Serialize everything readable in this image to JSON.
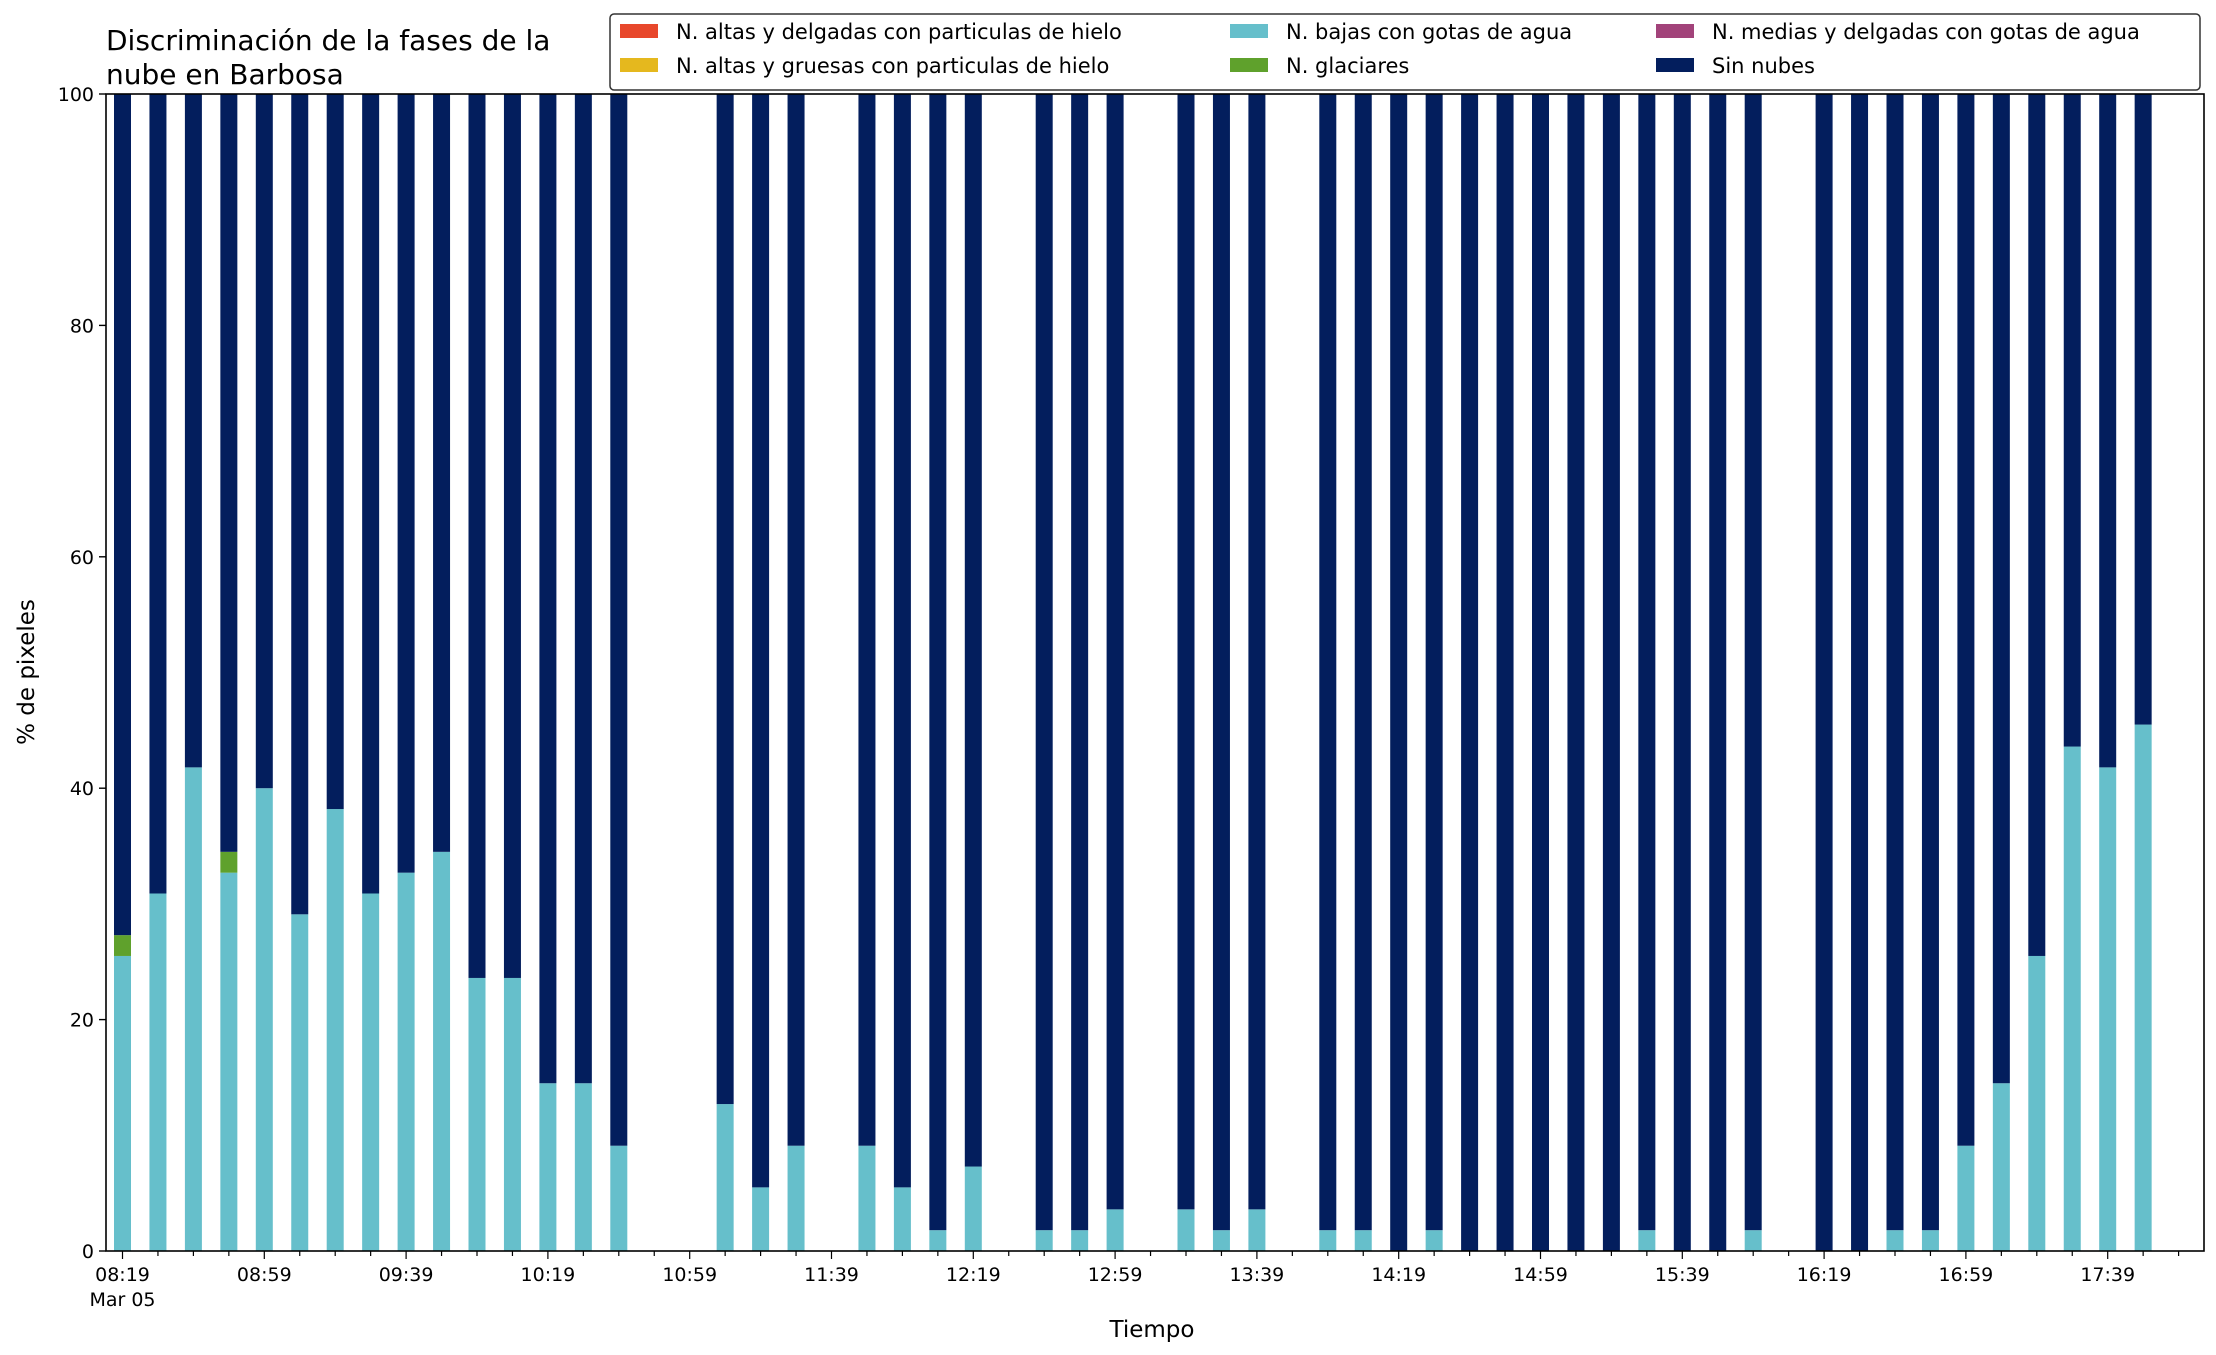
{
  "chart_data": {
    "type": "bar",
    "stacked": true,
    "title_lines": [
      "Discriminación de la fases de la",
      "nube en Barbosa"
    ],
    "xlabel": "Tiempo",
    "ylabel": "% de pixeles",
    "ylim": [
      0,
      100
    ],
    "yticks": [
      0,
      20,
      40,
      60,
      80,
      100
    ],
    "x_start": "08:19",
    "x_step_minutes": 10,
    "x_count": 59,
    "xtick_labels": [
      "08:19",
      "08:59",
      "09:39",
      "10:19",
      "10:59",
      "11:39",
      "12:19",
      "12:59",
      "13:39",
      "14:19",
      "14:59",
      "15:39",
      "16:19",
      "16:59",
      "17:39"
    ],
    "xtick_sublabel": "Mar 05",
    "major_every": 4,
    "legend_position": "top-right",
    "grid": false,
    "series": [
      {
        "name": "N. altas y delgadas con particulas de hielo",
        "color": "#e8472b",
        "values": [
          0,
          0,
          0,
          0,
          0,
          0,
          0,
          0,
          0,
          0,
          0,
          0,
          0,
          0,
          0,
          0,
          0,
          0,
          0,
          0,
          0,
          0,
          0,
          0,
          0,
          0,
          0,
          0,
          0,
          0,
          0,
          0,
          0,
          0,
          0,
          0,
          0,
          0,
          0,
          0,
          0,
          0,
          0,
          0,
          0,
          0,
          0,
          0,
          0,
          0,
          0,
          0,
          0,
          0,
          0,
          0,
          0,
          0,
          0
        ]
      },
      {
        "name": "N. altas y gruesas con particulas de hielo",
        "color": "#e5b81e",
        "values": [
          0,
          0,
          0,
          0,
          0,
          0,
          0,
          0,
          0,
          0,
          0,
          0,
          0,
          0,
          0,
          0,
          0,
          0,
          0,
          0,
          0,
          0,
          0,
          0,
          0,
          0,
          0,
          0,
          0,
          0,
          0,
          0,
          0,
          0,
          0,
          0,
          0,
          0,
          0,
          0,
          0,
          0,
          0,
          0,
          0,
          0,
          0,
          0,
          0,
          0,
          0,
          0,
          0,
          0,
          0,
          0,
          0,
          0,
          0
        ]
      },
      {
        "name": "N. bajas con gotas de agua",
        "color": "#66bfcb",
        "values": [
          25.5,
          30.9,
          41.8,
          32.7,
          40.0,
          29.1,
          38.2,
          30.9,
          32.7,
          34.5,
          23.6,
          23.6,
          14.5,
          14.5,
          9.1,
          null,
          null,
          12.7,
          5.5,
          9.1,
          null,
          9.1,
          5.5,
          1.8,
          7.3,
          null,
          1.8,
          1.8,
          3.6,
          null,
          3.6,
          1.8,
          3.6,
          null,
          1.8,
          1.8,
          0,
          1.8,
          0,
          0,
          0,
          0,
          0,
          1.8,
          0,
          0,
          1.8,
          null,
          0,
          0,
          1.8,
          1.8,
          9.1,
          14.5,
          25.5,
          43.6,
          41.8,
          45.5,
          null
        ]
      },
      {
        "name": "N. medias y delgadas con gotas de agua",
        "color": "#a2437a",
        "values": [
          0,
          0,
          0,
          0,
          0,
          0,
          0,
          0,
          0,
          0,
          0,
          0,
          0,
          0,
          0,
          0,
          0,
          0,
          0,
          0,
          0,
          0,
          0,
          0,
          0,
          0,
          0,
          0,
          0,
          0,
          0,
          0,
          0,
          0,
          0,
          0,
          0,
          0,
          0,
          0,
          0,
          0,
          0,
          0,
          0,
          0,
          0,
          0,
          0,
          0,
          0,
          0,
          0,
          0,
          0,
          0,
          0,
          0,
          0
        ]
      },
      {
        "name": "N. glaciares",
        "color": "#5fa12c",
        "values": [
          1.8,
          0,
          0,
          1.8,
          0,
          0,
          0,
          0,
          0,
          0,
          0,
          0,
          0,
          0,
          0,
          null,
          null,
          0,
          0,
          0,
          null,
          0,
          0,
          0,
          0,
          null,
          0,
          0,
          0,
          null,
          0,
          0,
          0,
          null,
          0,
          0,
          0,
          0,
          0,
          0,
          0,
          0,
          0,
          0,
          0,
          0,
          0,
          null,
          0,
          0,
          0,
          0,
          0,
          0,
          0,
          0,
          0,
          0,
          null
        ]
      },
      {
        "name": "Sin nubes",
        "color": "#031e5d",
        "values": [
          72.7,
          69.1,
          58.2,
          65.5,
          60.0,
          70.9,
          61.8,
          69.1,
          67.3,
          65.5,
          76.4,
          76.4,
          85.5,
          85.5,
          90.9,
          null,
          null,
          87.3,
          94.5,
          90.9,
          null,
          90.9,
          94.5,
          98.2,
          92.7,
          null,
          98.2,
          98.2,
          96.4,
          null,
          96.4,
          98.2,
          96.4,
          null,
          98.2,
          98.2,
          100,
          98.2,
          100,
          100,
          100,
          100,
          100,
          98.2,
          100,
          100,
          98.2,
          null,
          100,
          100,
          98.2,
          98.2,
          90.9,
          85.5,
          74.5,
          56.4,
          58.2,
          54.5,
          null
        ]
      }
    ]
  }
}
